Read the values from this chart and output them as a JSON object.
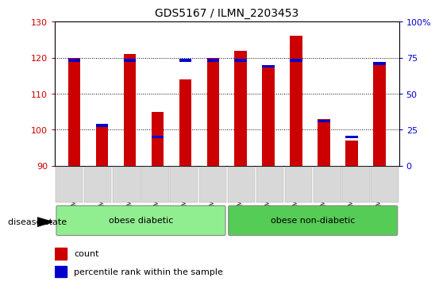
{
  "title": "GDS5167 / ILMN_2203453",
  "samples": [
    "GSM1313607",
    "GSM1313609",
    "GSM1313610",
    "GSM1313611",
    "GSM1313616",
    "GSM1313618",
    "GSM1313608",
    "GSM1313612",
    "GSM1313613",
    "GSM1313614",
    "GSM1313615",
    "GSM1313617"
  ],
  "counts": [
    120,
    101,
    121,
    105,
    114,
    120,
    122,
    118,
    126,
    103,
    97,
    118
  ],
  "percentiles": [
    72,
    27,
    72,
    19,
    72,
    72,
    72,
    68,
    72,
    30,
    19,
    70
  ],
  "ymin": 90,
  "ymax": 130,
  "yticks": [
    90,
    100,
    110,
    120,
    130
  ],
  "right_yticks": [
    0,
    25,
    50,
    75,
    100
  ],
  "bar_color": "#cc0000",
  "percentile_color": "#0000cc",
  "groups": [
    {
      "label": "obese diabetic",
      "start": 0,
      "end": 5,
      "color": "#90ee90"
    },
    {
      "label": "obese non-diabetic",
      "start": 6,
      "end": 11,
      "color": "#55cc55"
    }
  ],
  "disease_state_label": "disease state",
  "legend_count_label": "count",
  "legend_percentile_label": "percentile rank within the sample",
  "bar_width": 0.45,
  "left_label_color": "#cc0000",
  "right_label_color": "#0000cc",
  "figsize": [
    5.63,
    3.63
  ],
  "dpi": 100
}
